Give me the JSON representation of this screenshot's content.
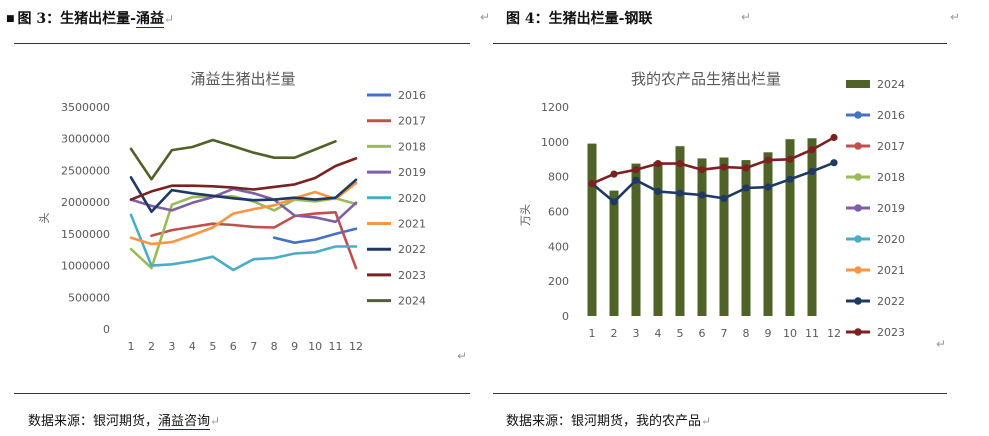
{
  "left_figure": {
    "caption_prefix": "图 3：生猪出栏量-",
    "caption_link": "涌益",
    "source_prefix": "数据来源：银河期货，",
    "source_link": "涌益咨询",
    "return_mark": "↵"
  },
  "right_figure": {
    "caption": "图 4：生猪出栏量-钢联",
    "source": "数据来源：银河期货，我的农产品",
    "return_mark": "↵"
  },
  "chart_data": [
    {
      "type": "line",
      "title": "涌益生猪出栏量",
      "xlabel": "",
      "ylabel": "头",
      "x": [
        1,
        2,
        3,
        4,
        5,
        6,
        7,
        8,
        9,
        10,
        11,
        12
      ],
      "ylim": [
        0,
        3500000
      ],
      "yticks": [
        0,
        500000,
        1000000,
        1500000,
        2000000,
        2500000,
        3000000,
        3500000
      ],
      "legend_position": "right",
      "series": [
        {
          "name": "2016",
          "color": "#4472c4",
          "values": [
            null,
            null,
            null,
            null,
            null,
            null,
            null,
            1440000,
            1360000,
            1410000,
            1500000,
            1580000
          ]
        },
        {
          "name": "2017",
          "color": "#c0504d",
          "values": [
            null,
            1470000,
            1560000,
            1610000,
            1660000,
            1640000,
            1610000,
            1600000,
            1780000,
            1820000,
            1840000,
            960000
          ]
        },
        {
          "name": "2018",
          "color": "#9bbb59",
          "values": [
            1260000,
            960000,
            1960000,
            2080000,
            2090000,
            2090000,
            2010000,
            1870000,
            2040000,
            2010000,
            2060000,
            1970000
          ]
        },
        {
          "name": "2019",
          "color": "#7f5fa8",
          "values": [
            2040000,
            1940000,
            1870000,
            1990000,
            2080000,
            2210000,
            2140000,
            2040000,
            1790000,
            1760000,
            1690000,
            1990000
          ]
        },
        {
          "name": "2020",
          "color": "#4bacc6",
          "values": [
            1800000,
            1000000,
            1020000,
            1070000,
            1140000,
            930000,
            1100000,
            1120000,
            1190000,
            1210000,
            1300000,
            1300000
          ]
        },
        {
          "name": "2021",
          "color": "#f79646",
          "values": [
            1440000,
            1340000,
            1370000,
            1480000,
            1600000,
            1820000,
            1890000,
            1950000,
            2060000,
            2160000,
            2050000,
            2300000
          ]
        },
        {
          "name": "2022",
          "color": "#1f3864",
          "values": [
            2390000,
            1850000,
            2190000,
            2140000,
            2100000,
            2060000,
            2030000,
            2040000,
            2070000,
            2040000,
            2070000,
            2350000
          ]
        },
        {
          "name": "2023",
          "color": "#7b2121",
          "values": [
            2040000,
            2170000,
            2260000,
            2260000,
            2250000,
            2230000,
            2200000,
            2240000,
            2280000,
            2380000,
            2570000,
            2690000
          ]
        },
        {
          "name": "2024",
          "color": "#4f6228",
          "values": [
            2840000,
            2360000,
            2820000,
            2870000,
            2980000,
            2880000,
            2780000,
            2700000,
            2700000,
            2830000,
            2960000,
            null
          ]
        }
      ]
    },
    {
      "type": "bar",
      "title": "我的农产品生猪出栏量",
      "xlabel": "",
      "ylabel": "万头",
      "x": [
        1,
        2,
        3,
        4,
        5,
        6,
        7,
        8,
        9,
        10,
        11,
        12
      ],
      "ylim": [
        0,
        1200
      ],
      "yticks": [
        0,
        200,
        400,
        600,
        800,
        1000,
        1200
      ],
      "legend_position": "right",
      "bar_series": {
        "name": "2024",
        "color": "#4f6228",
        "values": [
          990,
          720,
          875,
          885,
          975,
          905,
          910,
          895,
          940,
          1015,
          1020,
          null
        ]
      },
      "series": [
        {
          "name": "2016",
          "color": "#4472c4",
          "values": [
            null,
            null,
            null,
            null,
            null,
            null,
            null,
            null,
            null,
            null,
            null,
            null
          ]
        },
        {
          "name": "2017",
          "color": "#c0504d",
          "values": [
            null,
            null,
            null,
            null,
            null,
            null,
            null,
            null,
            null,
            null,
            null,
            null
          ]
        },
        {
          "name": "2018",
          "color": "#9bbb59",
          "values": [
            null,
            null,
            null,
            null,
            null,
            null,
            null,
            null,
            null,
            null,
            null,
            null
          ]
        },
        {
          "name": "2019",
          "color": "#7f5fa8",
          "values": [
            null,
            null,
            null,
            null,
            null,
            null,
            null,
            null,
            null,
            null,
            null,
            null
          ]
        },
        {
          "name": "2020",
          "color": "#4bacc6",
          "values": [
            null,
            null,
            null,
            null,
            null,
            null,
            null,
            null,
            null,
            null,
            null,
            null
          ]
        },
        {
          "name": "2021",
          "color": "#f79646",
          "values": [
            null,
            null,
            null,
            null,
            null,
            null,
            null,
            null,
            null,
            null,
            null,
            null
          ]
        },
        {
          "name": "2022",
          "color": "#1f3864",
          "values": [
            760,
            655,
            780,
            715,
            705,
            695,
            675,
            735,
            740,
            785,
            830,
            880
          ]
        },
        {
          "name": "2023",
          "color": "#7b2121",
          "values": [
            760,
            815,
            840,
            875,
            875,
            840,
            855,
            850,
            895,
            900,
            955,
            1025
          ]
        }
      ],
      "legend_order": [
        "2024",
        "2016",
        "2017",
        "2018",
        "2019",
        "2020",
        "2021",
        "2022",
        "2023"
      ]
    }
  ]
}
